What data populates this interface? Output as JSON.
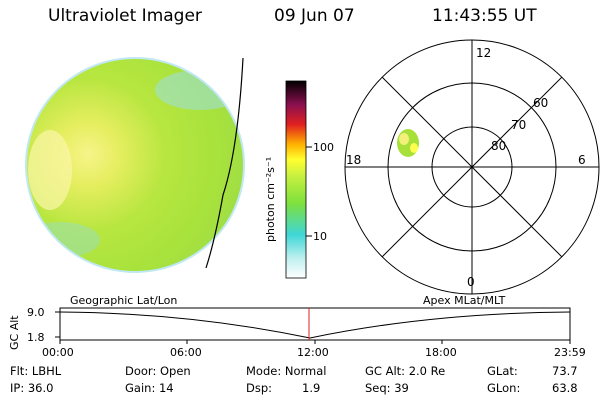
{
  "header": {
    "instrument": "Ultraviolet Imager",
    "date": "09 Jun 07",
    "time": "11:43:55 UT"
  },
  "colorbar": {
    "unit_label": "photon cm⁻²s⁻¹",
    "ticks": [
      "100",
      "10"
    ],
    "scale": "log",
    "colors": [
      "#ffffff",
      "#3fd6d6",
      "#8fe030",
      "#ffff30",
      "#ffb000",
      "#e02020",
      "#8a1050",
      "#000000"
    ]
  },
  "polar": {
    "mlt_labels": {
      "top": "12",
      "left": "18",
      "right": "6",
      "bottom": "0"
    },
    "lat_labels": [
      "60",
      "70",
      "80"
    ]
  },
  "timeline": {
    "left_title": "Geographic Lat/Lon",
    "right_title": "Apex MLat/MLT",
    "ylabel": "GC Alt",
    "yticks": [
      "9.0",
      "1.8"
    ],
    "xticks": [
      "00:00",
      "06:00",
      "12:00",
      "18:00",
      "23:59"
    ],
    "current_time_marker": "12:00"
  },
  "info": {
    "flt": "Flt: LBHL",
    "ip": "IP: 36.0",
    "door": "Door: Open",
    "gain": "Gain: 14",
    "mode": "Mode: Normal",
    "dsp_label": "Dsp:",
    "dsp_value": "1.9",
    "gcalt": "GC Alt: 2.0 Re",
    "seq": "Seq: 39",
    "glat_label": "GLat:",
    "glat_value": "73.7",
    "glon_label": "GLon:",
    "glon_value": "63.8"
  }
}
